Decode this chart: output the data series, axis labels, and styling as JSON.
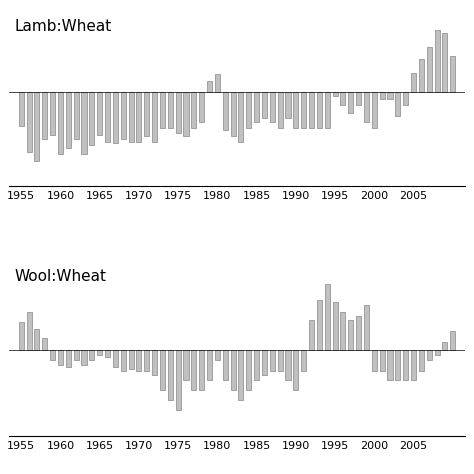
{
  "title1": "Lamb:Wheat",
  "title2": "Wool:Wheat",
  "background_color": "#ffffff",
  "bar_color": "#c0c0c0",
  "bar_edge_color": "#707070",
  "xlim_start": 1953.5,
  "xlim_end": 2011.5,
  "xticks": [
    1955,
    1960,
    1965,
    1970,
    1975,
    1980,
    1985,
    1990,
    1995,
    2000,
    2005
  ],
  "fontsize_title": 11,
  "fontsize_tick": 8,
  "lamb_years": [
    1955,
    1956,
    1957,
    1958,
    1959,
    1960,
    1961,
    1962,
    1963,
    1964,
    1965,
    1966,
    1967,
    1968,
    1969,
    1970,
    1971,
    1972,
    1973,
    1974,
    1975,
    1976,
    1977,
    1978,
    1979,
    1980,
    1981,
    1982,
    1983,
    1984,
    1985,
    1986,
    1987,
    1988,
    1989,
    1990,
    1991,
    1992,
    1993,
    1994,
    1995,
    1996,
    1997,
    1998,
    1999,
    2000,
    2001,
    2002,
    2003,
    2004,
    2005,
    2006,
    2007,
    2008,
    2009,
    2010
  ],
  "lamb_vals": [
    -0.4,
    -0.7,
    -0.8,
    -0.55,
    -0.5,
    -0.72,
    -0.65,
    -0.55,
    -0.72,
    -0.62,
    -0.5,
    -0.58,
    -0.6,
    -0.55,
    -0.58,
    -0.58,
    -0.52,
    -0.58,
    -0.42,
    -0.42,
    -0.48,
    -0.52,
    -0.42,
    -0.35,
    0.12,
    0.2,
    -0.45,
    -0.52,
    -0.58,
    -0.42,
    -0.35,
    -0.3,
    -0.35,
    -0.42,
    -0.3,
    -0.42,
    -0.42,
    -0.42,
    -0.42,
    -0.42,
    -0.05,
    -0.15,
    -0.25,
    -0.15,
    -0.35,
    -0.42,
    -0.08,
    -0.08,
    -0.28,
    -0.15,
    0.22,
    0.38,
    0.52,
    0.72,
    0.68,
    0.42
  ],
  "wool_years": [
    1955,
    1956,
    1957,
    1958,
    1959,
    1960,
    1961,
    1962,
    1963,
    1964,
    1965,
    1966,
    1967,
    1968,
    1969,
    1970,
    1971,
    1972,
    1973,
    1974,
    1975,
    1976,
    1977,
    1978,
    1979,
    1980,
    1981,
    1982,
    1983,
    1984,
    1985,
    1986,
    1987,
    1988,
    1989,
    1990,
    1991,
    1992,
    1993,
    1994,
    1995,
    1996,
    1997,
    1998,
    1999,
    2000,
    2001,
    2002,
    2003,
    2004,
    2005,
    2006,
    2007,
    2008,
    2009,
    2010
  ],
  "wool_vals": [
    0.42,
    0.58,
    0.32,
    0.18,
    -0.15,
    -0.22,
    -0.25,
    -0.15,
    -0.22,
    -0.15,
    -0.08,
    -0.1,
    -0.25,
    -0.32,
    -0.28,
    -0.32,
    -0.32,
    -0.38,
    -0.6,
    -0.75,
    -0.9,
    -0.45,
    -0.6,
    -0.6,
    -0.45,
    -0.15,
    -0.45,
    -0.6,
    -0.75,
    -0.6,
    -0.45,
    -0.38,
    -0.32,
    -0.32,
    -0.45,
    -0.6,
    -0.32,
    0.45,
    0.75,
    1.0,
    0.72,
    0.58,
    0.45,
    0.52,
    0.68,
    -0.32,
    -0.32,
    -0.45,
    -0.45,
    -0.45,
    -0.45,
    -0.32,
    -0.15,
    -0.08,
    0.12,
    0.28
  ]
}
